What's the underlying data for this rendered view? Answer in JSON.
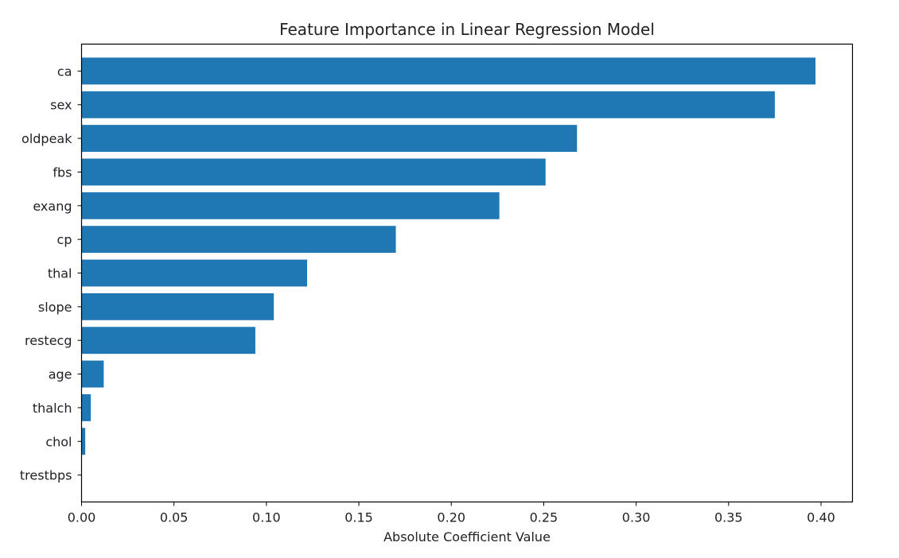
{
  "chart_data": {
    "type": "bar",
    "orientation": "horizontal",
    "title": "Feature Importance in Linear Regression Model",
    "xlabel": "Absolute Coefficient Value",
    "ylabel": "",
    "categories": [
      "ca",
      "sex",
      "oldpeak",
      "fbs",
      "exang",
      "cp",
      "thal",
      "slope",
      "restecg",
      "age",
      "thalch",
      "chol",
      "trestbps"
    ],
    "values": [
      0.397,
      0.375,
      0.268,
      0.251,
      0.226,
      0.17,
      0.122,
      0.104,
      0.094,
      0.012,
      0.005,
      0.002,
      0.0
    ],
    "xlim": [
      0.0,
      0.417
    ],
    "xticks": [
      "0.00",
      "0.05",
      "0.10",
      "0.15",
      "0.20",
      "0.25",
      "0.30",
      "0.35",
      "0.40"
    ],
    "grid": false,
    "legend": "none",
    "bar_color": "#1f77b4"
  }
}
